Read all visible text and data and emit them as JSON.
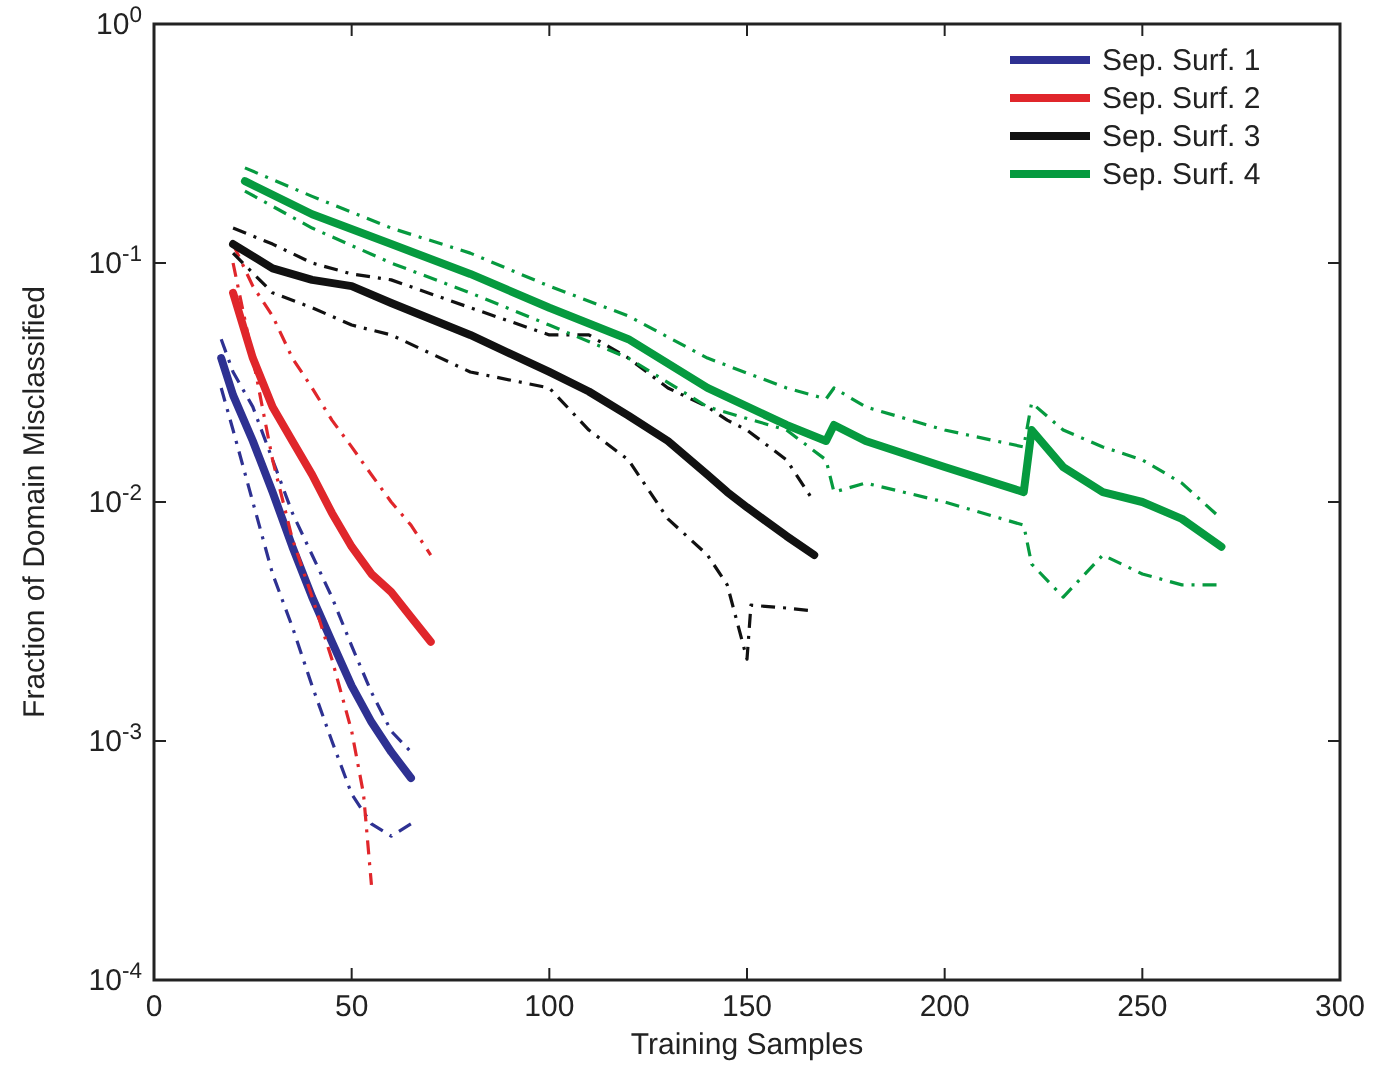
{
  "chart_data": {
    "type": "line",
    "xlabel": "Training Samples",
    "ylabel": "Fraction of Domain Misclassified",
    "log": "y",
    "xlim": [
      0,
      300
    ],
    "xticks": [
      0,
      50,
      100,
      150,
      200,
      250,
      300
    ],
    "ylim": [
      0.0001,
      1
    ],
    "yticks": [
      {
        "value": 0.0001,
        "label": "10$^{-4}$"
      },
      {
        "value": 0.001,
        "label": "10$^{-3}$"
      },
      {
        "value": 0.01,
        "label": "10$^{-2}$"
      },
      {
        "value": 0.1,
        "label": "10$^{-1}$"
      },
      {
        "value": 1,
        "label": "10$^{0}$"
      }
    ],
    "legend": "top right",
    "grid": false,
    "marker": "none",
    "line_style": "solid",
    "series": [
      {
        "name": "Sep. Surf. 1",
        "color": "#2e3192",
        "x": [
          17,
          20,
          25,
          30,
          35,
          40,
          45,
          50,
          55,
          60,
          65
        ],
        "values": [
          0.04,
          0.028,
          0.018,
          0.011,
          0.0065,
          0.004,
          0.0026,
          0.0017,
          0.0012,
          0.0009,
          0.0007
        ]
      },
      {
        "color": "#2e3192",
        "line_style": "dashed",
        "x": [
          17,
          20,
          25,
          30,
          35,
          40,
          45,
          50,
          55,
          60,
          65
        ],
        "values": [
          0.048,
          0.035,
          0.025,
          0.015,
          0.009,
          0.006,
          0.004,
          0.0025,
          0.0016,
          0.0011,
          0.0009
        ]
      },
      {
        "color": "#2e3192",
        "line_style": "dashed",
        "x": [
          17,
          20,
          25,
          30,
          35,
          40,
          45,
          50,
          55,
          60,
          65
        ],
        "values": [
          0.03,
          0.02,
          0.01,
          0.005,
          0.003,
          0.0017,
          0.001,
          0.0006,
          0.00045,
          0.0004,
          0.00045
        ]
      },
      {
        "name": "Sep. Surf. 2",
        "color": "#e0262b",
        "x": [
          20,
          25,
          30,
          35,
          40,
          45,
          50,
          55,
          60,
          65,
          70
        ],
        "values": [
          0.075,
          0.04,
          0.025,
          0.018,
          0.013,
          0.009,
          0.0065,
          0.005,
          0.0042,
          0.0033,
          0.0026
        ]
      },
      {
        "color": "#e0262b",
        "line_style": "dashed",
        "x": [
          20,
          25,
          30,
          35,
          40,
          45,
          50,
          55,
          60,
          65,
          70
        ],
        "values": [
          0.12,
          0.08,
          0.06,
          0.04,
          0.03,
          0.022,
          0.017,
          0.013,
          0.01,
          0.008,
          0.006
        ]
      },
      {
        "color": "#e0262b",
        "line_style": "dashed",
        "x": [
          20,
          25,
          30,
          35,
          40,
          45,
          50,
          53,
          55
        ],
        "values": [
          0.1,
          0.04,
          0.015,
          0.007,
          0.004,
          0.0022,
          0.0011,
          0.0006,
          0.00025
        ]
      },
      {
        "name": "Sep. Surf. 3",
        "color": "#111111",
        "x": [
          20,
          30,
          40,
          50,
          60,
          80,
          100,
          110,
          120,
          130,
          140,
          145,
          150,
          160,
          167
        ],
        "values": [
          0.12,
          0.095,
          0.085,
          0.08,
          0.068,
          0.05,
          0.035,
          0.029,
          0.023,
          0.018,
          0.013,
          0.011,
          0.0095,
          0.0072,
          0.006
        ]
      },
      {
        "color": "#111111",
        "line_style": "dashed",
        "x": [
          20,
          30,
          40,
          50,
          60,
          80,
          100,
          110,
          120,
          130,
          140,
          145,
          150,
          160,
          167
        ],
        "values": [
          0.14,
          0.12,
          0.1,
          0.09,
          0.085,
          0.065,
          0.05,
          0.05,
          0.04,
          0.03,
          0.025,
          0.022,
          0.02,
          0.015,
          0.01
        ]
      },
      {
        "color": "#111111",
        "line_style": "dashed",
        "x": [
          20,
          30,
          40,
          50,
          60,
          80,
          100,
          110,
          120,
          130,
          140,
          145,
          150,
          151,
          160,
          167
        ],
        "values": [
          0.11,
          0.075,
          0.065,
          0.055,
          0.05,
          0.035,
          0.03,
          0.02,
          0.015,
          0.0085,
          0.006,
          0.0045,
          0.0022,
          0.0037,
          0.0036,
          0.0035
        ]
      },
      {
        "name": "Sep. Surf. 4",
        "color": "#069a3f",
        "x": [
          23,
          40,
          60,
          80,
          100,
          120,
          140,
          160,
          170,
          172,
          180,
          200,
          220,
          222,
          230,
          240,
          250,
          260,
          270
        ],
        "values": [
          0.22,
          0.16,
          0.12,
          0.09,
          0.065,
          0.048,
          0.03,
          0.021,
          0.018,
          0.021,
          0.018,
          0.014,
          0.011,
          0.02,
          0.014,
          0.011,
          0.01,
          0.0085,
          0.0065
        ]
      },
      {
        "color": "#069a3f",
        "line_style": "dashed",
        "x": [
          23,
          40,
          60,
          80,
          100,
          120,
          140,
          160,
          170,
          172,
          180,
          200,
          220,
          222,
          230,
          240,
          250,
          260,
          270
        ],
        "values": [
          0.25,
          0.19,
          0.14,
          0.11,
          0.08,
          0.06,
          0.04,
          0.03,
          0.027,
          0.03,
          0.025,
          0.02,
          0.017,
          0.026,
          0.02,
          0.017,
          0.015,
          0.012,
          0.0085
        ]
      },
      {
        "color": "#069a3f",
        "line_style": "dashed",
        "x": [
          23,
          40,
          60,
          80,
          100,
          120,
          140,
          160,
          170,
          172,
          180,
          200,
          220,
          222,
          230,
          240,
          250,
          260,
          270
        ],
        "values": [
          0.2,
          0.14,
          0.1,
          0.075,
          0.055,
          0.04,
          0.025,
          0.02,
          0.015,
          0.011,
          0.012,
          0.01,
          0.008,
          0.0055,
          0.004,
          0.006,
          0.005,
          0.0045,
          0.0045
        ]
      }
    ]
  }
}
